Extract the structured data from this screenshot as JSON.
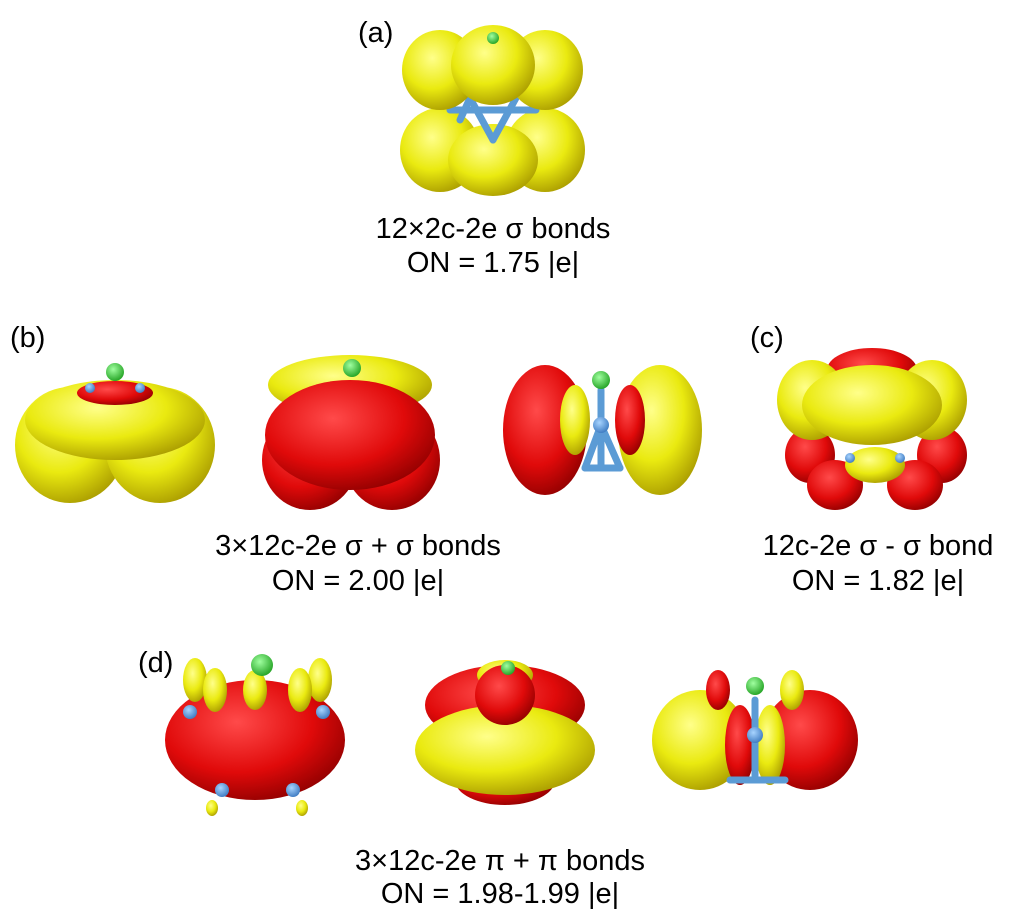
{
  "panels": [
    {
      "label": "(a)",
      "caption": [
        "12×2c-2e σ bonds",
        "ON = 1.75 |e|"
      ]
    },
    {
      "label": "(b)",
      "caption": [
        "3×12c-2e σ + σ bonds",
        "ON = 2.00 |e|"
      ]
    },
    {
      "label": "(c)",
      "caption": [
        "12c-2e σ - σ bond",
        "ON = 1.82 |e|"
      ]
    },
    {
      "label": "(d)",
      "caption": [
        "3×12c-2e π + π bonds",
        "ON = 1.98-1.99 |e|"
      ]
    }
  ]
}
